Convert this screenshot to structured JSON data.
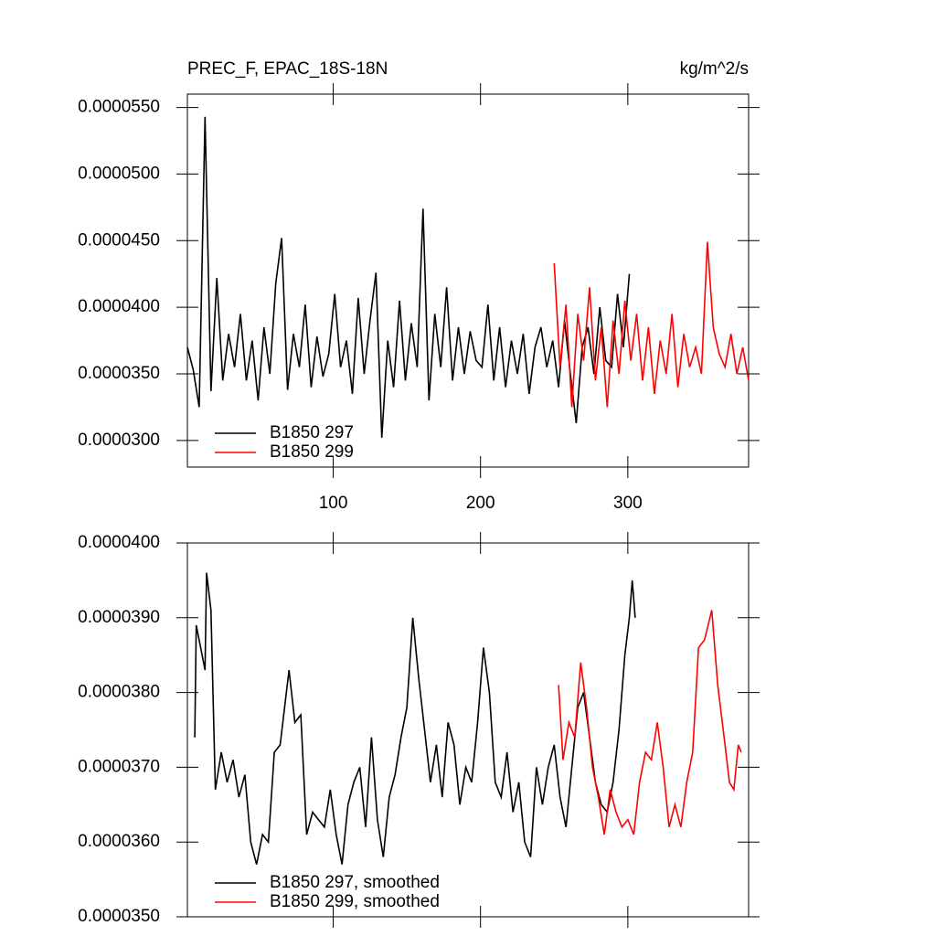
{
  "chart_data": [
    {
      "type": "line",
      "title": "PREC_F, EPAC_18S-18N",
      "units": "kg/m^2/s",
      "xlim": [
        1,
        382
      ],
      "ylim": [
        2.8e-05,
        5.6e-05
      ],
      "xticks": [
        100,
        200,
        300
      ],
      "xtick_labels": true,
      "yticks": [
        {
          "value": 3e-05,
          "label": "0.0000300"
        },
        {
          "value": 3.5e-05,
          "label": "0.0000350"
        },
        {
          "value": 4e-05,
          "label": "0.0000400"
        },
        {
          "value": 4.5e-05,
          "label": "0.0000450"
        },
        {
          "value": 5e-05,
          "label": "0.0000500"
        },
        {
          "value": 5.5e-05,
          "label": "0.0000550"
        }
      ],
      "legend": "lower left",
      "series": [
        {
          "name": "B1850 297",
          "color": "#000000",
          "x": [
            1,
            5,
            9,
            13,
            17,
            21,
            25,
            29,
            33,
            37,
            41,
            45,
            49,
            53,
            57,
            61,
            65,
            69,
            73,
            77,
            81,
            85,
            89,
            93,
            97,
            101,
            105,
            109,
            113,
            117,
            121,
            125,
            129,
            133,
            137,
            141,
            145,
            149,
            153,
            157,
            161,
            165,
            169,
            173,
            177,
            181,
            185,
            189,
            193,
            197,
            201,
            205,
            209,
            213,
            217,
            221,
            225,
            229,
            233,
            237,
            241,
            245,
            249,
            253,
            257,
            261,
            265,
            269,
            273,
            277,
            281,
            285,
            289,
            293,
            297,
            301
          ],
          "values": [
            3.7e-05,
            3.53e-05,
            3.25e-05,
            5.43e-05,
            3.37e-05,
            4.22e-05,
            3.45e-05,
            3.8e-05,
            3.55e-05,
            3.95e-05,
            3.45e-05,
            3.75e-05,
            3.3e-05,
            3.85e-05,
            3.5e-05,
            4.18e-05,
            4.52e-05,
            3.38e-05,
            3.8e-05,
            3.55e-05,
            4.02e-05,
            3.4e-05,
            3.78e-05,
            3.48e-05,
            3.65e-05,
            4.1e-05,
            3.55e-05,
            3.75e-05,
            3.35e-05,
            4.07e-05,
            3.5e-05,
            3.9e-05,
            4.26e-05,
            3.02e-05,
            3.75e-05,
            3.4e-05,
            4.05e-05,
            3.45e-05,
            3.88e-05,
            3.55e-05,
            4.74e-05,
            3.3e-05,
            3.95e-05,
            3.55e-05,
            4.15e-05,
            3.45e-05,
            3.85e-05,
            3.5e-05,
            3.82e-05,
            3.6e-05,
            3.55e-05,
            4.02e-05,
            3.45e-05,
            3.85e-05,
            3.4e-05,
            3.75e-05,
            3.5e-05,
            3.8e-05,
            3.35e-05,
            3.7e-05,
            3.85e-05,
            3.55e-05,
            3.75e-05,
            3.4e-05,
            3.9e-05,
            3.5e-05,
            3.13e-05,
            3.7e-05,
            3.85e-05,
            3.5e-05,
            4e-05,
            3.6e-05,
            3.55e-05,
            4.1e-05,
            3.7e-05,
            4.25e-05
          ]
        },
        {
          "name": "B1850 299",
          "color": "#ff0000",
          "x": [
            250,
            254,
            258,
            262,
            266,
            270,
            274,
            278,
            282,
            286,
            290,
            294,
            298,
            302,
            306,
            310,
            314,
            318,
            322,
            326,
            330,
            334,
            338,
            342,
            346,
            350,
            354,
            358,
            362,
            366,
            370,
            374,
            378,
            382
          ],
          "values": [
            4.33e-05,
            3.55e-05,
            4.02e-05,
            3.25e-05,
            3.95e-05,
            3.6e-05,
            4.15e-05,
            3.45e-05,
            3.85e-05,
            3.25e-05,
            3.9e-05,
            3.5e-05,
            4.05e-05,
            3.6e-05,
            3.95e-05,
            3.45e-05,
            3.85e-05,
            3.35e-05,
            3.75e-05,
            3.5e-05,
            3.95e-05,
            3.4e-05,
            3.8e-05,
            3.55e-05,
            3.7e-05,
            3.5e-05,
            4.49e-05,
            3.85e-05,
            3.65e-05,
            3.55e-05,
            3.8e-05,
            3.5e-05,
            3.7e-05,
            3.45e-05
          ]
        }
      ]
    },
    {
      "type": "line",
      "xlim": [
        1,
        382
      ],
      "ylim": [
        3.5e-05,
        4e-05
      ],
      "xticks": [
        100,
        200,
        300
      ],
      "xtick_labels": false,
      "yticks": [
        {
          "value": 3.5e-05,
          "label": "0.0000350"
        },
        {
          "value": 3.6e-05,
          "label": "0.0000360"
        },
        {
          "value": 3.7e-05,
          "label": "0.0000370"
        },
        {
          "value": 3.8e-05,
          "label": "0.0000380"
        },
        {
          "value": 3.9e-05,
          "label": "0.0000390"
        },
        {
          "value": 4e-05,
          "label": "0.0000400"
        }
      ],
      "legend": "lower left",
      "series": [
        {
          "name": "B1850 297, smoothed",
          "color": "#000000",
          "x": [
            6,
            7,
            10,
            13,
            14,
            17,
            20,
            24,
            28,
            32,
            36,
            40,
            44,
            48,
            52,
            56,
            60,
            64,
            70,
            74,
            78,
            82,
            86,
            90,
            94,
            98,
            102,
            106,
            110,
            114,
            118,
            122,
            126,
            130,
            134,
            138,
            142,
            146,
            150,
            154,
            158,
            162,
            166,
            170,
            174,
            178,
            182,
            186,
            190,
            194,
            198,
            202,
            206,
            210,
            214,
            218,
            222,
            226,
            230,
            234,
            238,
            242,
            246,
            250,
            254,
            258,
            262,
            266,
            270,
            274,
            278,
            282,
            286,
            290,
            294,
            298,
            301,
            303,
            305
          ],
          "values": [
            3.74e-05,
            3.89e-05,
            3.86e-05,
            3.83e-05,
            3.96e-05,
            3.91e-05,
            3.67e-05,
            3.72e-05,
            3.68e-05,
            3.71e-05,
            3.66e-05,
            3.69e-05,
            3.6e-05,
            3.57e-05,
            3.61e-05,
            3.6e-05,
            3.72e-05,
            3.73e-05,
            3.83e-05,
            3.76e-05,
            3.77e-05,
            3.61e-05,
            3.64e-05,
            3.63e-05,
            3.62e-05,
            3.67e-05,
            3.61e-05,
            3.57e-05,
            3.65e-05,
            3.68e-05,
            3.7e-05,
            3.62e-05,
            3.74e-05,
            3.63e-05,
            3.58e-05,
            3.66e-05,
            3.69e-05,
            3.74e-05,
            3.78e-05,
            3.9e-05,
            3.82e-05,
            3.75e-05,
            3.68e-05,
            3.73e-05,
            3.66e-05,
            3.76e-05,
            3.73e-05,
            3.65e-05,
            3.7e-05,
            3.68e-05,
            3.76e-05,
            3.86e-05,
            3.8e-05,
            3.68e-05,
            3.66e-05,
            3.72e-05,
            3.64e-05,
            3.68e-05,
            3.6e-05,
            3.58e-05,
            3.7e-05,
            3.65e-05,
            3.7e-05,
            3.73e-05,
            3.66e-05,
            3.62e-05,
            3.7e-05,
            3.78e-05,
            3.8e-05,
            3.74e-05,
            3.68e-05,
            3.65e-05,
            3.64e-05,
            3.68e-05,
            3.75e-05,
            3.85e-05,
            3.9e-05,
            3.95e-05,
            3.9e-05
          ]
        },
        {
          "name": "B1850 299, smoothed",
          "color": "#ff0000",
          "x": [
            253,
            256,
            260,
            264,
            268,
            272,
            276,
            280,
            284,
            288,
            292,
            296,
            300,
            304,
            308,
            312,
            316,
            320,
            324,
            328,
            332,
            336,
            340,
            344,
            348,
            352,
            357,
            361,
            366,
            369,
            372,
            375,
            377
          ],
          "values": [
            3.81e-05,
            3.71e-05,
            3.76e-05,
            3.74e-05,
            3.84e-05,
            3.78e-05,
            3.7e-05,
            3.66e-05,
            3.61e-05,
            3.67e-05,
            3.64e-05,
            3.62e-05,
            3.63e-05,
            3.61e-05,
            3.68e-05,
            3.72e-05,
            3.71e-05,
            3.76e-05,
            3.7e-05,
            3.62e-05,
            3.65e-05,
            3.62e-05,
            3.68e-05,
            3.72e-05,
            3.86e-05,
            3.87e-05,
            3.91e-05,
            3.81e-05,
            3.73e-05,
            3.68e-05,
            3.67e-05,
            3.73e-05,
            3.72e-05
          ]
        }
      ]
    }
  ]
}
